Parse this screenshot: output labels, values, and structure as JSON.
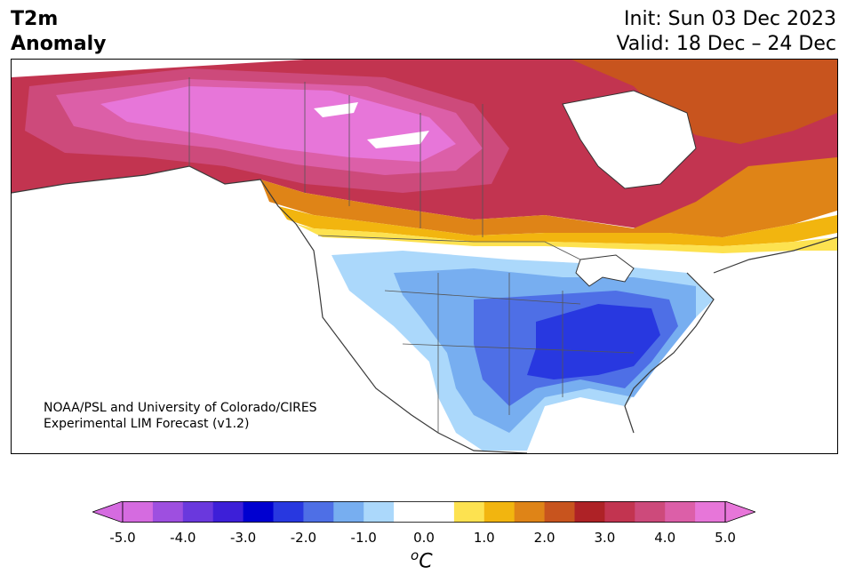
{
  "title": {
    "line1": "T2m",
    "line2": "Anomaly",
    "init": "Init: Sun 03 Dec 2023",
    "valid": "Valid: 18 Dec – 24 Dec"
  },
  "credit": {
    "line1": "NOAA/PSL and University of Colorado/CIRES",
    "line2": "Experimental LIM Forecast (v1.2)"
  },
  "colorbar": {
    "ticks": [
      "-5.0",
      "-4.0",
      "-3.0",
      "-2.0",
      "-1.0",
      "0.0",
      "1.0",
      "2.0",
      "3.0",
      "4.0",
      "5.0"
    ],
    "units_base": "o",
    "units_letter": "C",
    "colors": [
      "#d56be0",
      "#9e4fe0",
      "#6a38dd",
      "#3d1fd8",
      "#0000d0",
      "#2838e0",
      "#4e6fe6",
      "#77aef0",
      "#abd8fb",
      "#ffffff",
      "#ffffff",
      "#fde250",
      "#f2b50f",
      "#df8417",
      "#c8541e",
      "#ae2226",
      "#c23450",
      "#cd4a7b",
      "#dc5fa8",
      "#e776d9"
    ],
    "range": [
      -5.0,
      5.0
    ]
  },
  "map": {
    "region": "North America",
    "fields": [
      {
        "name": "strong-warm-canada",
        "color": "#e776d9"
      },
      {
        "name": "warm-canada",
        "color": "#c23450"
      },
      {
        "name": "warm-southern-canada",
        "color": "#df8417"
      },
      {
        "name": "mild-border",
        "color": "#fde250"
      },
      {
        "name": "cool-west",
        "color": "#abd8fb"
      },
      {
        "name": "cold-central",
        "color": "#77aef0"
      },
      {
        "name": "colder-south",
        "color": "#4e6fe6"
      },
      {
        "name": "coldest-southeast",
        "color": "#2838e0"
      }
    ]
  }
}
